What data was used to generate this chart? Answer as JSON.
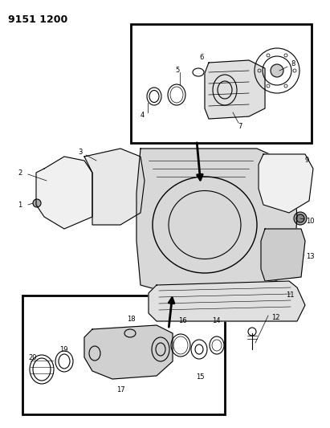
{
  "title": "9151 1200",
  "background_color": "#ffffff",
  "line_color": "#000000",
  "fig_width": 4.11,
  "fig_height": 5.33,
  "dpi": 100
}
